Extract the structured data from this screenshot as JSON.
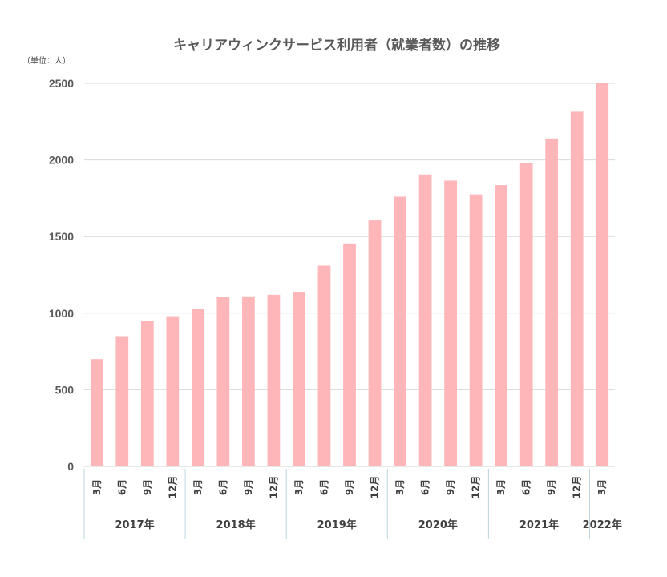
{
  "chart_data": {
    "type": "bar",
    "title": "キャリアウィンクサービス利用者（就業者数）の推移",
    "unit_label": "（単位：人）",
    "ylim": [
      0,
      2500
    ],
    "yticks": [
      0,
      500,
      1000,
      1500,
      2000,
      2500
    ],
    "grid": true,
    "bar_color": "#ffb6b9",
    "categories": [
      "3月",
      "6月",
      "9月",
      "12月",
      "3月",
      "6月",
      "9月",
      "12月",
      "3月",
      "6月",
      "9月",
      "12月",
      "3月",
      "6月",
      "9月",
      "12月",
      "3月",
      "6月",
      "9月",
      "12月",
      "3月"
    ],
    "values": [
      700,
      850,
      950,
      980,
      1030,
      1105,
      1110,
      1120,
      1140,
      1310,
      1455,
      1605,
      1760,
      1905,
      1865,
      1775,
      1835,
      1980,
      2140,
      2315,
      2500
    ],
    "years": [
      {
        "label": "2017年",
        "count": 4
      },
      {
        "label": "2018年",
        "count": 4
      },
      {
        "label": "2019年",
        "count": 4
      },
      {
        "label": "2020年",
        "count": 4
      },
      {
        "label": "2021年",
        "count": 4
      },
      {
        "label": "2022年",
        "count": 1
      }
    ]
  }
}
